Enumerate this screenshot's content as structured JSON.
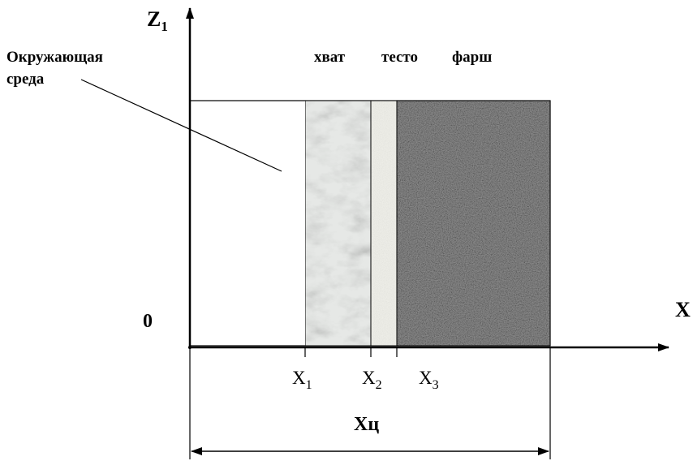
{
  "axes": {
    "vertical_label": "Z",
    "vertical_subscript": "1",
    "horizontal_label": "X",
    "origin_label": "0"
  },
  "environment_label": {
    "line1": "Окружающая",
    "line2": "среда"
  },
  "layers": [
    {
      "label": "хват",
      "color": "#e6e8e6"
    },
    {
      "label": "тесто",
      "color": "#efefe9"
    },
    {
      "label": "фарш",
      "color": "#8f8f8f"
    }
  ],
  "boundaries": [
    {
      "label": "X",
      "subscript": "1"
    },
    {
      "label": "X",
      "subscript": "2"
    },
    {
      "label": "X",
      "subscript": "3"
    }
  ],
  "dimension_label": "Xц"
}
